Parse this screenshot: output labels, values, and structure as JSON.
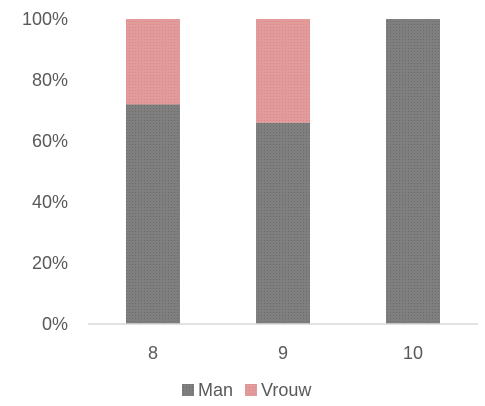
{
  "chart_data": {
    "type": "bar",
    "stacked": true,
    "percent_stacked": true,
    "categories": [
      "8",
      "9",
      "10"
    ],
    "series": [
      {
        "name": "Man",
        "values": [
          72,
          66,
          100
        ],
        "color": "#808080"
      },
      {
        "name": "Vrouw",
        "values": [
          28,
          34,
          0
        ],
        "color": "#e09595"
      }
    ],
    "yticks": [
      "0%",
      "20%",
      "40%",
      "60%",
      "80%",
      "100%"
    ],
    "ylim": [
      0,
      100
    ],
    "grid": false,
    "legend_position": "bottom"
  }
}
